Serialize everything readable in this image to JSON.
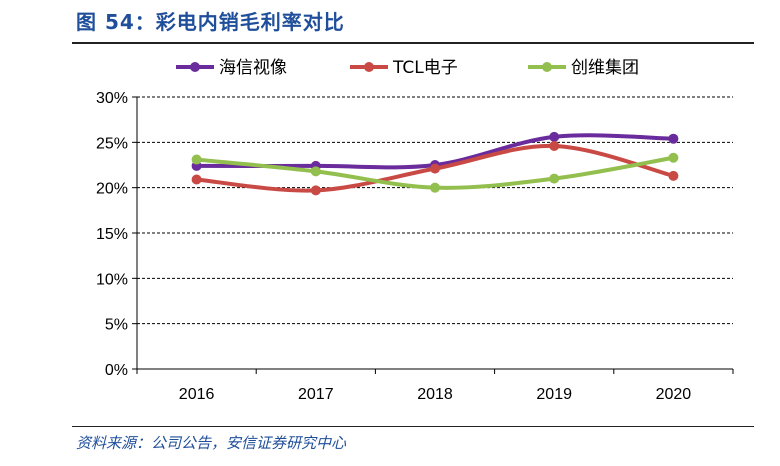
{
  "figure": {
    "title": "图 54：彩电内销毛利率对比",
    "source": "资料来源：公司公告，安信证券研究中心"
  },
  "chart_data": {
    "type": "line",
    "title": "彩电内销毛利率对比",
    "categories": [
      "2016",
      "2017",
      "2018",
      "2019",
      "2020"
    ],
    "ylim": [
      0,
      30
    ],
    "yticks": [
      0,
      5,
      10,
      15,
      20,
      25,
      30
    ],
    "ytick_labels": [
      "0%",
      "5%",
      "10%",
      "15%",
      "20%",
      "25%",
      "30%"
    ],
    "grid": true,
    "legend_position": "top",
    "series": [
      {
        "name": "海信视像",
        "color": "#6a2b9c",
        "values": [
          22.4,
          22.4,
          22.5,
          25.6,
          25.4
        ]
      },
      {
        "name": "TCL电子",
        "color": "#c94a45",
        "values": [
          20.9,
          19.7,
          22.1,
          24.6,
          21.3
        ]
      },
      {
        "name": "创维集团",
        "color": "#93bf4f",
        "values": [
          23.1,
          21.8,
          20.0,
          21.0,
          23.3
        ]
      }
    ]
  }
}
